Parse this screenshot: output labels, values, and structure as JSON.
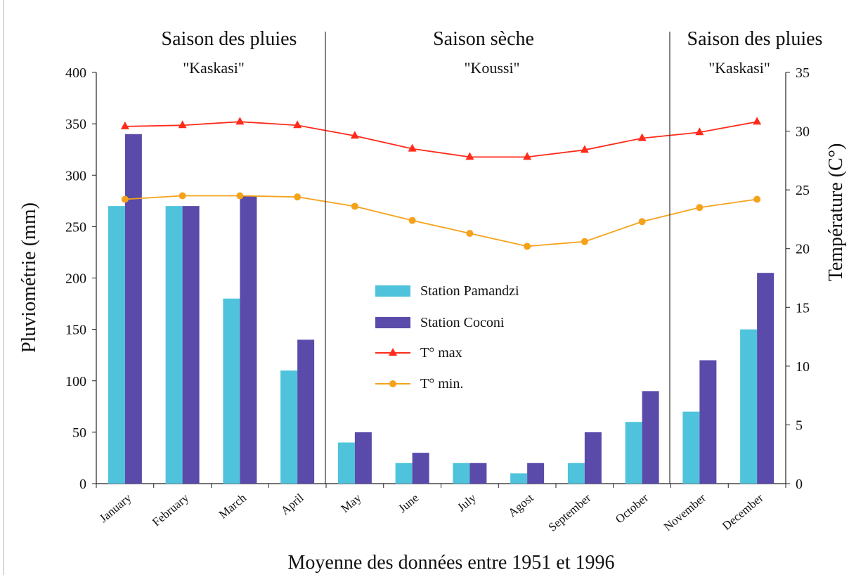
{
  "chart_data": {
    "type": "bar",
    "categories": [
      "January",
      "February",
      "March",
      "April",
      "May",
      "June",
      "July",
      "Agost",
      "September",
      "October",
      "November",
      "December"
    ],
    "series": [
      {
        "name": "Station Pamandzi",
        "kind": "bar",
        "axis": "left",
        "color": "#4fc3dc",
        "values": [
          270,
          270,
          180,
          110,
          40,
          20,
          20,
          10,
          20,
          60,
          70,
          150
        ]
      },
      {
        "name": "Station Coconi",
        "kind": "bar",
        "axis": "left",
        "color": "#5a4aaa",
        "values": [
          340,
          270,
          280,
          140,
          50,
          30,
          20,
          20,
          50,
          90,
          120,
          205
        ]
      },
      {
        "name": "T° max",
        "kind": "line",
        "axis": "right",
        "marker": "triangle",
        "color": "#ff2a1a",
        "values": [
          30.4,
          30.5,
          30.8,
          30.5,
          29.6,
          28.5,
          27.8,
          27.8,
          28.4,
          29.4,
          29.9,
          30.8
        ]
      },
      {
        "name": "T° min.",
        "kind": "line",
        "axis": "right",
        "marker": "circle",
        "color": "#f5a21b",
        "values": [
          24.2,
          24.5,
          24.5,
          24.4,
          23.6,
          22.4,
          21.3,
          20.2,
          20.6,
          22.3,
          23.5,
          24.2
        ]
      }
    ],
    "ylabel": "Pluviométrie (mm)",
    "ylim": [
      0,
      400
    ],
    "yticks": [
      0,
      50,
      100,
      150,
      200,
      250,
      300,
      350,
      400
    ],
    "y2label": "Température (C°)",
    "y2lim": [
      0,
      35
    ],
    "y2ticks": [
      0,
      5,
      10,
      15,
      20,
      25,
      30,
      35
    ],
    "xlabel": "Moyenne des données entre 1951 et 1996",
    "legend_position": "center",
    "seasons": [
      {
        "title": "Saison des pluies",
        "subtitle": "\"Kaskasi\""
      },
      {
        "title": "Saison sèche",
        "subtitle": "\"Koussi\""
      },
      {
        "title": "Saison des pluies",
        "subtitle": "\"Kaskasi\""
      }
    ]
  }
}
